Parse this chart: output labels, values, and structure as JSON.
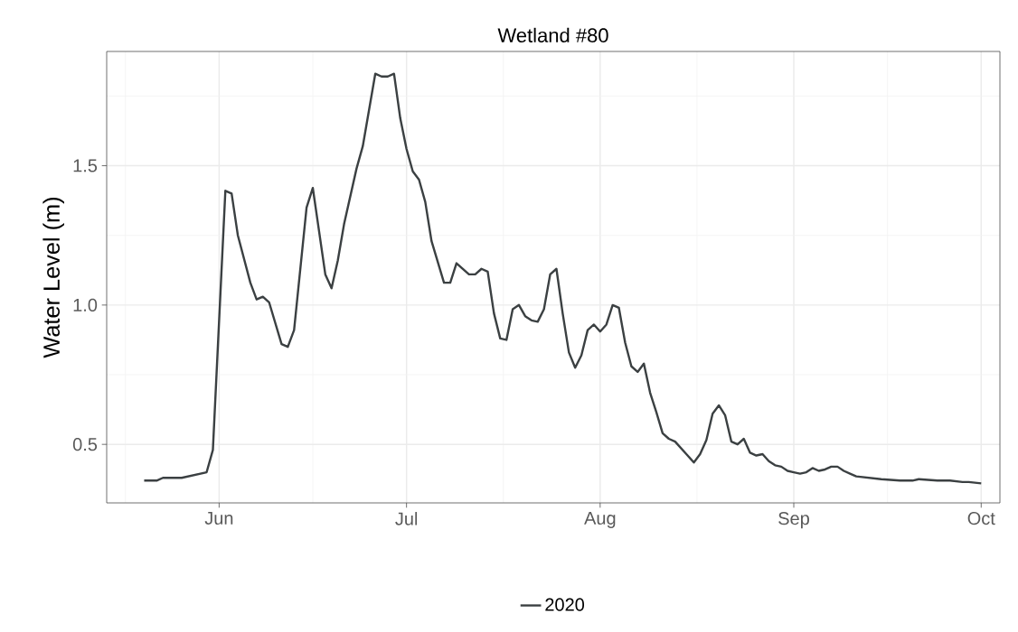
{
  "chart_data": {
    "type": "line",
    "title": "Wetland #80",
    "ylabel": "Water Level (m)",
    "xlim": [
      "2020-05-14",
      "2020-10-04"
    ],
    "xticks": [
      {
        "value": "2020-06-01",
        "label": "Jun"
      },
      {
        "value": "2020-07-01",
        "label": "Jul"
      },
      {
        "value": "2020-08-01",
        "label": "Aug"
      },
      {
        "value": "2020-09-01",
        "label": "Sep"
      },
      {
        "value": "2020-10-01",
        "label": "Oct"
      }
    ],
    "ylim": [
      0.29,
      1.91
    ],
    "yticks": [
      {
        "value": 0.5,
        "label": "0.5"
      },
      {
        "value": 1.0,
        "label": "1.0"
      },
      {
        "value": 1.5,
        "label": "1.5"
      }
    ],
    "grid": true,
    "legend": "bottom",
    "line_style": "solid",
    "marker": "none",
    "series": [
      {
        "name": "2020",
        "color": "#3b4042",
        "x": [
          "2020-05-20",
          "2020-05-22",
          "2020-05-23",
          "2020-05-26",
          "2020-05-30",
          "2020-05-31",
          "2020-06-02",
          "2020-06-03",
          "2020-06-04",
          "2020-06-06",
          "2020-06-07",
          "2020-06-08",
          "2020-06-09",
          "2020-06-11",
          "2020-06-12",
          "2020-06-13",
          "2020-06-15",
          "2020-06-16",
          "2020-06-18",
          "2020-06-19",
          "2020-06-20",
          "2020-06-21",
          "2020-06-23",
          "2020-06-24",
          "2020-06-26",
          "2020-06-27",
          "2020-06-28",
          "2020-06-29",
          "2020-06-30",
          "2020-07-01",
          "2020-07-02",
          "2020-07-03",
          "2020-07-04",
          "2020-07-05",
          "2020-07-07",
          "2020-07-08",
          "2020-07-09",
          "2020-07-11",
          "2020-07-12",
          "2020-07-13",
          "2020-07-14",
          "2020-07-15",
          "2020-07-16",
          "2020-07-17",
          "2020-07-18",
          "2020-07-19",
          "2020-07-20",
          "2020-07-21",
          "2020-07-22",
          "2020-07-23",
          "2020-07-24",
          "2020-07-25",
          "2020-07-26",
          "2020-07-27",
          "2020-07-28",
          "2020-07-29",
          "2020-07-30",
          "2020-07-31",
          "2020-08-01",
          "2020-08-02",
          "2020-08-03",
          "2020-08-04",
          "2020-08-05",
          "2020-08-06",
          "2020-08-07",
          "2020-08-08",
          "2020-08-09",
          "2020-08-10",
          "2020-08-11",
          "2020-08-12",
          "2020-08-13",
          "2020-08-14",
          "2020-08-15",
          "2020-08-16",
          "2020-08-17",
          "2020-08-18",
          "2020-08-19",
          "2020-08-20",
          "2020-08-21",
          "2020-08-22",
          "2020-08-23",
          "2020-08-24",
          "2020-08-25",
          "2020-08-26",
          "2020-08-27",
          "2020-08-28",
          "2020-08-29",
          "2020-08-30",
          "2020-08-31",
          "2020-09-01",
          "2020-09-02",
          "2020-09-03",
          "2020-09-04",
          "2020-09-05",
          "2020-09-06",
          "2020-09-07",
          "2020-09-08",
          "2020-09-09",
          "2020-09-10",
          "2020-09-11",
          "2020-09-13",
          "2020-09-15",
          "2020-09-18",
          "2020-09-20",
          "2020-09-21",
          "2020-09-24",
          "2020-09-25",
          "2020-09-26",
          "2020-09-28",
          "2020-09-29",
          "2020-10-01"
        ],
        "values": [
          0.37,
          0.37,
          0.38,
          0.38,
          0.4,
          0.48,
          1.41,
          1.4,
          1.25,
          1.08,
          1.02,
          1.03,
          1.01,
          0.86,
          0.85,
          0.91,
          1.35,
          1.42,
          1.11,
          1.06,
          1.16,
          1.29,
          1.49,
          1.57,
          1.83,
          1.82,
          1.82,
          1.83,
          1.67,
          1.56,
          1.48,
          1.45,
          1.37,
          1.23,
          1.08,
          1.08,
          1.15,
          1.11,
          1.11,
          1.13,
          1.12,
          0.97,
          0.88,
          0.875,
          0.985,
          1.0,
          0.96,
          0.945,
          0.94,
          0.985,
          1.11,
          1.13,
          0.97,
          0.83,
          0.775,
          0.82,
          0.91,
          0.93,
          0.905,
          0.93,
          1.0,
          0.99,
          0.865,
          0.78,
          0.76,
          0.79,
          0.685,
          0.615,
          0.54,
          0.52,
          0.51,
          0.485,
          0.46,
          0.435,
          0.465,
          0.515,
          0.61,
          0.64,
          0.605,
          0.51,
          0.5,
          0.52,
          0.47,
          0.46,
          0.465,
          0.44,
          0.425,
          0.42,
          0.405,
          0.4,
          0.395,
          0.4,
          0.415,
          0.405,
          0.41,
          0.42,
          0.42,
          0.405,
          0.395,
          0.385,
          0.38,
          0.375,
          0.37,
          0.37,
          0.375,
          0.37,
          0.37,
          0.37,
          0.365,
          0.365,
          0.36
        ]
      }
    ]
  }
}
